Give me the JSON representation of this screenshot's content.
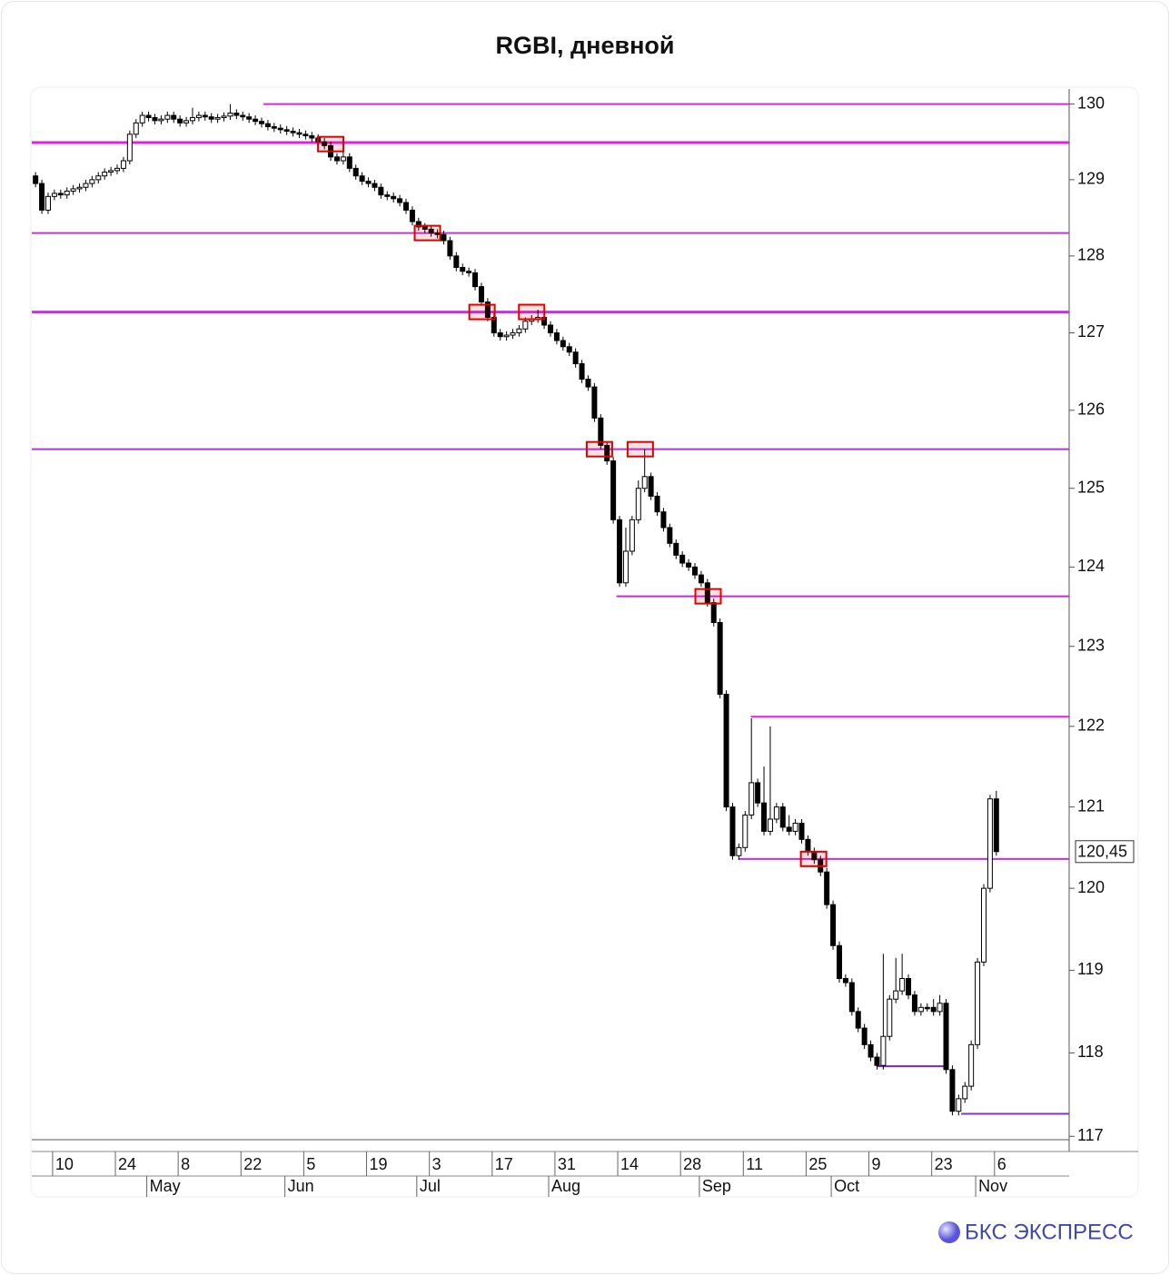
{
  "chart_data": {
    "type": "candlestick",
    "title": "RGBI, дневной",
    "brand": "БКС ЭКСПРЕСС",
    "log_scale": true,
    "open": [
      129.05,
      128.95,
      128.6,
      128.78,
      128.82,
      128.8,
      128.85,
      128.88,
      128.9,
      128.95,
      129.0,
      129.05,
      129.1,
      129.12,
      129.15,
      129.25,
      129.6,
      129.75,
      129.85,
      129.82,
      129.78,
      129.8,
      129.85,
      129.8,
      129.75,
      129.78,
      129.82,
      129.85,
      129.83,
      129.8,
      129.82,
      129.84,
      129.88,
      129.85,
      129.83,
      129.8,
      129.77,
      129.74,
      129.7,
      129.68,
      129.66,
      129.64,
      129.62,
      129.6,
      129.58,
      129.55,
      129.5,
      129.45,
      129.3,
      129.25,
      129.3,
      129.15,
      129.05,
      128.98,
      128.95,
      128.9,
      128.8,
      128.78,
      128.75,
      128.7,
      128.6,
      128.45,
      128.38,
      128.35,
      128.3,
      128.28,
      128.2,
      128.0,
      127.85,
      127.8,
      127.78,
      127.6,
      127.4,
      127.2,
      127.0,
      126.95,
      126.97,
      127.0,
      127.05,
      127.15,
      127.18,
      127.2,
      127.1,
      127.0,
      126.9,
      126.82,
      126.75,
      126.6,
      126.4,
      126.3,
      125.9,
      125.55,
      125.35,
      124.6,
      123.8,
      124.2,
      124.6,
      125.0,
      125.15,
      124.9,
      124.7,
      124.5,
      124.3,
      124.15,
      124.05,
      124.0,
      123.9,
      123.8,
      123.55,
      123.3,
      122.4,
      121.0,
      120.4,
      120.5,
      120.9,
      121.3,
      121.05,
      120.7,
      120.85,
      121.0,
      120.75,
      120.7,
      120.8,
      120.6,
      120.45,
      120.35,
      120.2,
      119.8,
      119.3,
      118.9,
      118.85,
      118.5,
      118.3,
      118.1,
      117.95,
      117.85,
      118.2,
      118.65,
      118.75,
      118.9,
      118.7,
      118.5,
      118.55,
      118.55,
      118.5,
      118.6,
      117.8,
      117.3,
      117.45,
      117.6,
      118.1,
      119.1,
      120.0,
      121.1
    ],
    "high": [
      129.1,
      129.0,
      128.83,
      128.87,
      128.87,
      128.9,
      128.93,
      128.95,
      129.0,
      129.05,
      129.1,
      129.15,
      129.17,
      129.2,
      129.3,
      129.65,
      129.8,
      129.9,
      129.9,
      129.87,
      129.85,
      129.9,
      129.9,
      129.85,
      129.83,
      129.95,
      129.9,
      129.9,
      129.88,
      129.87,
      129.89,
      130.0,
      129.93,
      129.9,
      129.88,
      129.85,
      129.82,
      129.79,
      129.75,
      129.73,
      129.71,
      129.69,
      129.67,
      129.65,
      129.63,
      129.6,
      129.55,
      129.5,
      129.35,
      129.4,
      129.35,
      129.2,
      129.1,
      129.03,
      129.0,
      128.95,
      128.85,
      128.83,
      128.8,
      128.75,
      128.65,
      128.5,
      128.43,
      128.4,
      128.35,
      128.33,
      128.25,
      128.05,
      127.9,
      127.85,
      127.83,
      127.65,
      127.45,
      127.25,
      127.05,
      127.02,
      127.05,
      127.1,
      127.2,
      127.23,
      127.3,
      127.25,
      127.15,
      127.05,
      126.95,
      126.87,
      126.8,
      126.65,
      126.45,
      126.35,
      125.95,
      125.6,
      125.4,
      124.65,
      124.5,
      124.65,
      125.1,
      125.5,
      125.2,
      124.95,
      124.75,
      124.55,
      124.35,
      124.2,
      124.1,
      124.05,
      123.95,
      123.85,
      123.6,
      123.35,
      122.45,
      121.05,
      120.55,
      120.95,
      122.1,
      121.35,
      121.5,
      122.0,
      121.05,
      121.05,
      120.9,
      120.85,
      120.85,
      120.65,
      120.5,
      120.4,
      120.25,
      119.85,
      119.35,
      118.95,
      118.9,
      118.55,
      118.35,
      118.15,
      118.0,
      119.2,
      118.7,
      119.15,
      119.2,
      118.95,
      118.75,
      118.6,
      118.6,
      118.65,
      118.7,
      118.65,
      117.85,
      117.5,
      117.65,
      118.15,
      119.15,
      120.05,
      121.15,
      121.2
    ],
    "low": [
      128.9,
      128.55,
      128.55,
      128.73,
      128.75,
      128.75,
      128.8,
      128.83,
      128.85,
      128.9,
      128.95,
      129.0,
      129.05,
      129.07,
      129.1,
      129.2,
      129.55,
      129.7,
      129.77,
      129.73,
      129.73,
      129.75,
      129.75,
      129.7,
      129.7,
      129.73,
      129.77,
      129.78,
      129.75,
      129.75,
      129.77,
      129.79,
      129.8,
      129.78,
      129.75,
      129.72,
      129.69,
      129.65,
      129.63,
      129.61,
      129.59,
      129.57,
      129.55,
      129.53,
      129.5,
      129.45,
      129.4,
      129.25,
      129.2,
      129.2,
      129.1,
      129.0,
      128.93,
      128.9,
      128.85,
      128.75,
      128.73,
      128.7,
      128.65,
      128.55,
      128.4,
      128.33,
      128.3,
      128.25,
      128.23,
      128.15,
      127.95,
      127.8,
      127.75,
      127.73,
      127.55,
      127.35,
      127.15,
      126.95,
      126.9,
      126.9,
      126.92,
      126.95,
      127.0,
      127.1,
      127.13,
      127.05,
      126.95,
      126.85,
      126.77,
      126.7,
      126.55,
      126.35,
      126.25,
      125.85,
      125.5,
      125.3,
      124.55,
      123.75,
      123.75,
      124.15,
      124.55,
      124.95,
      124.85,
      124.65,
      124.45,
      124.25,
      124.1,
      124.0,
      123.95,
      123.85,
      123.75,
      123.5,
      123.25,
      122.35,
      120.95,
      120.35,
      120.35,
      120.45,
      120.85,
      121.0,
      120.65,
      120.65,
      120.8,
      120.7,
      120.65,
      120.65,
      120.55,
      120.4,
      120.3,
      120.15,
      119.75,
      119.25,
      118.85,
      118.8,
      118.45,
      118.25,
      118.05,
      117.9,
      117.8,
      117.8,
      118.15,
      118.6,
      118.7,
      118.65,
      118.45,
      118.45,
      118.5,
      118.45,
      118.45,
      117.75,
      117.25,
      117.25,
      117.4,
      117.55,
      118.05,
      119.05,
      119.95,
      120.4
    ],
    "close": [
      128.95,
      128.6,
      128.78,
      128.82,
      128.8,
      128.85,
      128.88,
      128.9,
      128.95,
      129.0,
      129.05,
      129.1,
      129.12,
      129.15,
      129.25,
      129.6,
      129.75,
      129.85,
      129.82,
      129.78,
      129.8,
      129.85,
      129.8,
      129.75,
      129.78,
      129.82,
      129.85,
      129.83,
      129.8,
      129.82,
      129.84,
      129.88,
      129.85,
      129.83,
      129.8,
      129.77,
      129.74,
      129.7,
      129.68,
      129.66,
      129.64,
      129.62,
      129.6,
      129.58,
      129.55,
      129.5,
      129.45,
      129.3,
      129.25,
      129.3,
      129.15,
      129.05,
      128.98,
      128.95,
      128.9,
      128.8,
      128.78,
      128.75,
      128.7,
      128.6,
      128.45,
      128.38,
      128.35,
      128.3,
      128.28,
      128.2,
      128.0,
      127.85,
      127.8,
      127.78,
      127.6,
      127.4,
      127.2,
      127.0,
      126.95,
      126.97,
      127.0,
      127.05,
      127.15,
      127.18,
      127.2,
      127.1,
      127.0,
      126.9,
      126.82,
      126.75,
      126.6,
      126.4,
      126.3,
      125.9,
      125.55,
      125.35,
      124.6,
      123.8,
      124.2,
      124.6,
      125.0,
      125.15,
      124.9,
      124.7,
      124.5,
      124.3,
      124.15,
      124.05,
      124.0,
      123.9,
      123.8,
      123.55,
      123.3,
      122.4,
      121.0,
      120.4,
      120.5,
      120.9,
      121.3,
      121.05,
      120.7,
      120.85,
      121.0,
      120.75,
      120.7,
      120.8,
      120.6,
      120.45,
      120.35,
      120.2,
      119.8,
      119.3,
      118.9,
      118.85,
      118.5,
      118.3,
      118.1,
      117.95,
      117.85,
      118.2,
      118.65,
      118.75,
      118.9,
      118.7,
      118.5,
      118.55,
      118.55,
      118.5,
      118.6,
      117.8,
      117.3,
      117.45,
      117.6,
      118.1,
      119.1,
      120.0,
      121.1,
      120.45
    ],
    "up_color": "#ffffff",
    "down_color": "#000000",
    "xlim": [
      -0.6,
      164.6
    ],
    "xticks": [
      {
        "value": 3,
        "label": "10"
      },
      {
        "value": 13,
        "label": "24"
      },
      {
        "value": 23,
        "label": "8"
      },
      {
        "value": 33,
        "label": "22"
      },
      {
        "value": 43,
        "label": "5"
      },
      {
        "value": 53,
        "label": "19"
      },
      {
        "value": 63,
        "label": "3"
      },
      {
        "value": 73,
        "label": "17"
      },
      {
        "value": 83,
        "label": "31"
      },
      {
        "value": 93,
        "label": "14"
      },
      {
        "value": 103,
        "label": "28"
      },
      {
        "value": 113,
        "label": "11"
      },
      {
        "value": 123,
        "label": "25"
      },
      {
        "value": 133,
        "label": "9"
      },
      {
        "value": 143,
        "label": "23"
      },
      {
        "value": 153,
        "label": "6"
      }
    ],
    "month_ticks": [
      {
        "value": 18,
        "label": "May"
      },
      {
        "value": 40,
        "label": "Jun"
      },
      {
        "value": 61,
        "label": "Jul"
      },
      {
        "value": 82,
        "label": "Aug"
      },
      {
        "value": 106,
        "label": "Sep"
      },
      {
        "value": 127,
        "label": "Oct"
      },
      {
        "value": 150,
        "label": "Nov"
      }
    ],
    "ylim": [
      116.96,
      130.2
    ],
    "yticks": [
      117,
      118,
      119,
      120,
      121,
      122,
      123,
      124,
      125,
      126,
      127,
      128,
      129,
      130
    ],
    "last_price": {
      "value": 120.45,
      "label": "120,45"
    },
    "levels": [
      {
        "value": 130.0,
        "from": 36.3,
        "color": "#e020e0",
        "width": 2
      },
      {
        "value": 129.49,
        "from": -0.6,
        "color": "#e020e0",
        "width": 3
      },
      {
        "value": 128.3,
        "from": -0.6,
        "color": "#c433e0",
        "width": 2
      },
      {
        "value": 127.27,
        "from": -0.6,
        "color": "#c433e0",
        "width": 3
      },
      {
        "value": 125.5,
        "from": -0.6,
        "color": "#b533e0",
        "width": 2
      },
      {
        "value": 123.63,
        "from": 92.5,
        "color": "#d020e0",
        "width": 2
      },
      {
        "value": 122.12,
        "from": 113.9,
        "color": "#e020e0",
        "width": 2
      },
      {
        "value": 120.36,
        "from": 111.9,
        "color": "#c030e0",
        "width": 2
      },
      {
        "value": 117.84,
        "from": 134,
        "to": 145,
        "color": "#8020c8",
        "width": 2
      },
      {
        "value": 117.27,
        "from": 147.4,
        "color": "#8a30d0",
        "width": 2
      }
    ],
    "highlights": [
      {
        "x": 47,
        "y": 129.47
      },
      {
        "x": 62.4,
        "y": 128.3
      },
      {
        "x": 71.1,
        "y": 127.27
      },
      {
        "x": 79,
        "y": 127.27
      },
      {
        "x": 89.8,
        "y": 125.5
      },
      {
        "x": 96.3,
        "y": 125.5
      },
      {
        "x": 107.1,
        "y": 123.63
      },
      {
        "x": 123.9,
        "y": 120.36
      }
    ]
  }
}
